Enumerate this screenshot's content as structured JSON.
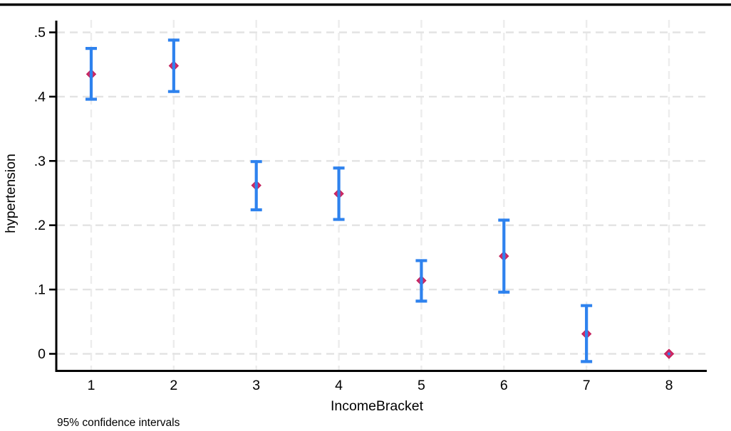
{
  "chart_data": {
    "type": "scatter",
    "subtype": "errorbar",
    "title": "",
    "xlabel": "IncomeBracket",
    "ylabel": "hypertension",
    "note": "95% confidence intervals",
    "x": [
      1,
      2,
      3,
      4,
      5,
      6,
      7,
      8
    ],
    "x_tick_labels": [
      "1",
      "2",
      "3",
      "4",
      "5",
      "6",
      "7",
      "8"
    ],
    "y_ticks": [
      0,
      0.1,
      0.2,
      0.3,
      0.4,
      0.5
    ],
    "y_tick_labels": [
      "0",
      ".1",
      ".2",
      ".3",
      ".4",
      ".5"
    ],
    "xlim": [
      0.57,
      8.46
    ],
    "ylim": [
      -0.027,
      0.517
    ],
    "grid": "dashed horizontal and vertical gridlines at ticks",
    "legend": "none",
    "series": [
      {
        "marker": "diamond",
        "estimates": [
          0.435,
          0.448,
          0.262,
          0.249,
          0.114,
          0.152,
          0.031,
          0.0
        ],
        "ci_low": [
          0.396,
          0.408,
          0.224,
          0.209,
          0.082,
          0.096,
          -0.012,
          0.0
        ],
        "ci_high": [
          0.475,
          0.488,
          0.299,
          0.289,
          0.145,
          0.208,
          0.075,
          0.0
        ]
      }
    ],
    "colors": {
      "marker": "#d02a66",
      "marker_edge": "#c01d59",
      "error_bar": "#2e82ee",
      "grid_horizontal": "#e3e3e3",
      "grid_vertical": "#ececec",
      "axis": "#000000",
      "top_rule": "#000000",
      "background": "#ffffff"
    }
  }
}
